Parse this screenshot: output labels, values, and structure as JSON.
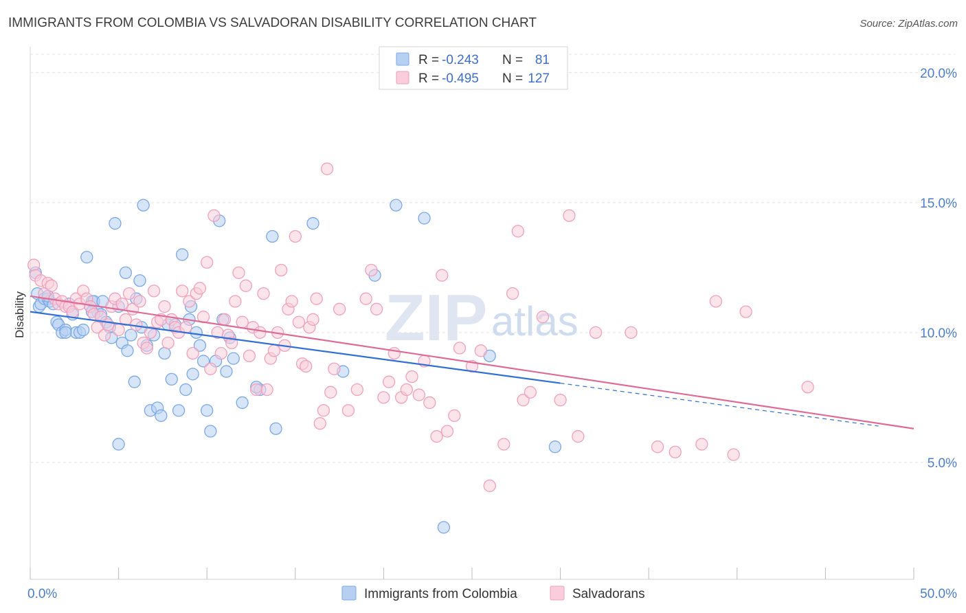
{
  "title": "IMMIGRANTS FROM COLOMBIA VS SALVADORAN DISABILITY CORRELATION CHART",
  "source": "Source: ZipAtlas.com",
  "watermark": {
    "main": "ZIP",
    "sub": "atlas"
  },
  "chart_data": {
    "type": "scatter",
    "ylabel": "Disability",
    "xlim": [
      0,
      50
    ],
    "ylim": [
      0.5,
      21
    ],
    "x_tick_labels": [
      {
        "value": 0,
        "label": "0.0%"
      },
      {
        "value": 50,
        "label": "50.0%"
      }
    ],
    "y_tick_labels": [
      {
        "value": 5,
        "label": "5.0%"
      },
      {
        "value": 10,
        "label": "10.0%"
      },
      {
        "value": 15,
        "label": "15.0%"
      },
      {
        "value": 20,
        "label": "20.0%"
      }
    ],
    "grid": true,
    "legend_position": "top-center",
    "legend_stats": [
      {
        "r_label": "R =",
        "r": "-0.243",
        "n_label": "N =",
        "n": "81"
      },
      {
        "r_label": "R =",
        "r": "-0.495",
        "n_label": "N =",
        "n": "127"
      }
    ],
    "series": [
      {
        "name": "Immigrants from Colombia",
        "color": "#7aa8e8",
        "fill": "#b7d0f2",
        "line_color": "#2f6fd6",
        "trend": {
          "x0": 0,
          "y0": 10.8,
          "x1": 30,
          "y1": 8.05,
          "dash_to_x": 48,
          "dash_to_y": 6.4
        },
        "points": [
          [
            0.3,
            12.3
          ],
          [
            0.4,
            11.5
          ],
          [
            0.5,
            11.0
          ],
          [
            0.6,
            11.1
          ],
          [
            0.8,
            11.3
          ],
          [
            1.0,
            11.3
          ],
          [
            1.1,
            11.2
          ],
          [
            1.3,
            11.1
          ],
          [
            1.5,
            10.4
          ],
          [
            1.6,
            10.3
          ],
          [
            1.8,
            10.0
          ],
          [
            2.0,
            10.1
          ],
          [
            2.2,
            11.1
          ],
          [
            2.4,
            10.7
          ],
          [
            2.6,
            10.0
          ],
          [
            2.8,
            10.0
          ],
          [
            3.0,
            10.1
          ],
          [
            3.2,
            12.9
          ],
          [
            3.4,
            11.0
          ],
          [
            3.5,
            11.2
          ],
          [
            3.6,
            11.2
          ],
          [
            3.8,
            10.8
          ],
          [
            4.0,
            10.7
          ],
          [
            4.1,
            11.2
          ],
          [
            4.3,
            10.4
          ],
          [
            4.5,
            10.2
          ],
          [
            4.6,
            9.8
          ],
          [
            4.8,
            14.2
          ],
          [
            5.0,
            11.0
          ],
          [
            5.2,
            9.6
          ],
          [
            5.4,
            12.3
          ],
          [
            5.5,
            9.3
          ],
          [
            5.7,
            9.9
          ],
          [
            5.9,
            8.1
          ],
          [
            6.0,
            11.3
          ],
          [
            6.2,
            12.0
          ],
          [
            6.4,
            14.9
          ],
          [
            6.6,
            9.5
          ],
          [
            6.8,
            7.0
          ],
          [
            7.0,
            9.9
          ],
          [
            7.2,
            7.1
          ],
          [
            7.4,
            6.8
          ],
          [
            7.6,
            9.2
          ],
          [
            7.8,
            10.3
          ],
          [
            8.0,
            8.2
          ],
          [
            8.2,
            10.3
          ],
          [
            8.4,
            7.0
          ],
          [
            8.6,
            13.0
          ],
          [
            8.8,
            7.8
          ],
          [
            9.0,
            10.5
          ],
          [
            9.2,
            8.4
          ],
          [
            9.4,
            10.0
          ],
          [
            9.6,
            9.5
          ],
          [
            9.8,
            8.9
          ],
          [
            10.0,
            7.0
          ],
          [
            10.2,
            6.2
          ],
          [
            10.5,
            8.9
          ],
          [
            10.7,
            14.3
          ],
          [
            10.9,
            10.5
          ],
          [
            11.1,
            8.5
          ],
          [
            11.3,
            9.8
          ],
          [
            11.5,
            9.0
          ],
          [
            12.0,
            7.3
          ],
          [
            13.0,
            7.8
          ],
          [
            13.7,
            13.7
          ],
          [
            13.9,
            6.3
          ],
          [
            16.0,
            14.2
          ],
          [
            17.7,
            8.5
          ],
          [
            19.5,
            12.2
          ],
          [
            20.7,
            14.9
          ],
          [
            22.3,
            14.4
          ],
          [
            23.4,
            2.5
          ],
          [
            26.0,
            9.1
          ],
          [
            29.7,
            5.6
          ],
          [
            2.0,
            10.0
          ],
          [
            5.0,
            5.7
          ],
          [
            3.5,
            10.8
          ],
          [
            1.0,
            11.4
          ],
          [
            6.3,
            10.2
          ],
          [
            9.1,
            11.0
          ],
          [
            12.8,
            7.9
          ]
        ]
      },
      {
        "name": "Salvadorans",
        "color": "#f0a0bb",
        "fill": "#f9cddb",
        "line_color": "#e06a96",
        "trend": {
          "x0": 0,
          "y0": 11.4,
          "x1": 50,
          "y1": 6.3
        },
        "points": [
          [
            0.2,
            12.6
          ],
          [
            0.3,
            12.2
          ],
          [
            0.6,
            12.0
          ],
          [
            0.8,
            11.5
          ],
          [
            1.0,
            11.9
          ],
          [
            1.2,
            11.8
          ],
          [
            1.4,
            11.3
          ],
          [
            1.6,
            11.1
          ],
          [
            1.8,
            11.2
          ],
          [
            2.0,
            11.0
          ],
          [
            2.2,
            11.0
          ],
          [
            2.4,
            10.8
          ],
          [
            2.6,
            11.3
          ],
          [
            2.8,
            11.1
          ],
          [
            3.0,
            11.6
          ],
          [
            3.2,
            11.3
          ],
          [
            3.4,
            11.0
          ],
          [
            3.6,
            10.7
          ],
          [
            3.8,
            10.2
          ],
          [
            4.0,
            10.6
          ],
          [
            4.2,
            9.9
          ],
          [
            4.4,
            10.3
          ],
          [
            4.6,
            11.0
          ],
          [
            4.8,
            11.3
          ],
          [
            5.0,
            10.1
          ],
          [
            5.2,
            11.1
          ],
          [
            5.4,
            10.5
          ],
          [
            5.6,
            11.5
          ],
          [
            5.8,
            10.9
          ],
          [
            6.0,
            10.3
          ],
          [
            6.2,
            11.2
          ],
          [
            6.4,
            9.6
          ],
          [
            6.6,
            9.4
          ],
          [
            6.8,
            10.0
          ],
          [
            7.0,
            11.6
          ],
          [
            7.2,
            10.4
          ],
          [
            7.4,
            10.5
          ],
          [
            7.6,
            11.0
          ],
          [
            7.8,
            9.6
          ],
          [
            8.0,
            10.5
          ],
          [
            8.2,
            10.2
          ],
          [
            8.4,
            10.0
          ],
          [
            8.6,
            11.6
          ],
          [
            8.8,
            10.2
          ],
          [
            9.0,
            11.2
          ],
          [
            9.2,
            9.2
          ],
          [
            9.4,
            11.5
          ],
          [
            9.6,
            11.7
          ],
          [
            9.8,
            10.6
          ],
          [
            10.0,
            12.7
          ],
          [
            10.2,
            8.6
          ],
          [
            10.4,
            14.5
          ],
          [
            10.6,
            10.0
          ],
          [
            10.8,
            9.2
          ],
          [
            11.0,
            10.5
          ],
          [
            11.2,
            9.9
          ],
          [
            11.4,
            9.6
          ],
          [
            11.6,
            11.2
          ],
          [
            11.8,
            12.3
          ],
          [
            12.0,
            10.4
          ],
          [
            12.2,
            11.8
          ],
          [
            12.4,
            9.1
          ],
          [
            12.6,
            10.2
          ],
          [
            12.8,
            7.8
          ],
          [
            13.0,
            10.0
          ],
          [
            13.2,
            11.5
          ],
          [
            13.4,
            7.8
          ],
          [
            13.6,
            9.0
          ],
          [
            13.8,
            9.3
          ],
          [
            14.0,
            10.0
          ],
          [
            14.2,
            12.4
          ],
          [
            14.4,
            9.5
          ],
          [
            14.6,
            10.9
          ],
          [
            14.8,
            11.2
          ],
          [
            15.0,
            13.7
          ],
          [
            15.2,
            10.4
          ],
          [
            15.4,
            8.8
          ],
          [
            15.6,
            8.7
          ],
          [
            15.8,
            10.2
          ],
          [
            16.0,
            10.5
          ],
          [
            16.2,
            11.3
          ],
          [
            16.4,
            6.5
          ],
          [
            16.6,
            7.0
          ],
          [
            16.8,
            16.3
          ],
          [
            17.0,
            7.7
          ],
          [
            17.5,
            10.9
          ],
          [
            18.0,
            7.0
          ],
          [
            18.5,
            7.8
          ],
          [
            19.0,
            11.3
          ],
          [
            19.3,
            12.4
          ],
          [
            19.6,
            10.9
          ],
          [
            20.0,
            7.5
          ],
          [
            20.3,
            8.1
          ],
          [
            20.6,
            9.2
          ],
          [
            21.0,
            7.5
          ],
          [
            21.3,
            7.8
          ],
          [
            21.6,
            8.3
          ],
          [
            22.0,
            7.6
          ],
          [
            22.3,
            8.9
          ],
          [
            22.6,
            7.3
          ],
          [
            23.0,
            6.0
          ],
          [
            23.3,
            12.2
          ],
          [
            23.6,
            6.2
          ],
          [
            24.0,
            6.8
          ],
          [
            24.3,
            9.4
          ],
          [
            25.0,
            8.7
          ],
          [
            25.5,
            9.3
          ],
          [
            26.0,
            4.1
          ],
          [
            26.8,
            5.7
          ],
          [
            27.3,
            11.5
          ],
          [
            27.6,
            13.9
          ],
          [
            27.9,
            7.4
          ],
          [
            28.3,
            7.7
          ],
          [
            29.0,
            10.6
          ],
          [
            30.0,
            7.4
          ],
          [
            30.5,
            14.5
          ],
          [
            31.0,
            6.0
          ],
          [
            32.0,
            10.0
          ],
          [
            34.0,
            10.0
          ],
          [
            35.5,
            5.6
          ],
          [
            36.5,
            5.4
          ],
          [
            38.0,
            5.7
          ],
          [
            38.8,
            11.2
          ],
          [
            39.8,
            5.3
          ],
          [
            40.5,
            10.8
          ],
          [
            44.0,
            7.9
          ],
          [
            17.2,
            8.6
          ]
        ]
      }
    ]
  }
}
